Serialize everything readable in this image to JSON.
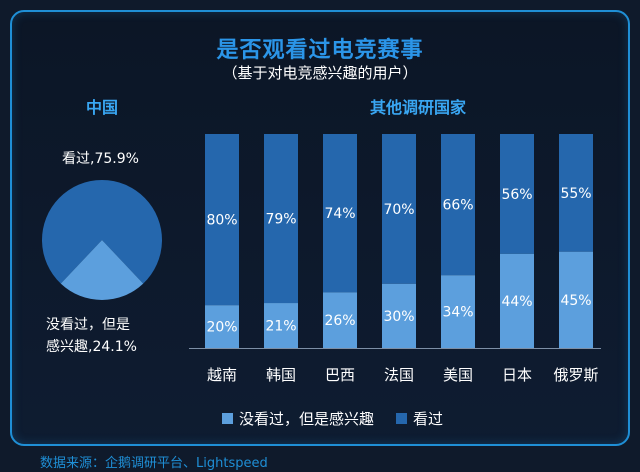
{
  "title": "是否观看过电竞赛事",
  "subtitle": "（基于对电竞感兴趣的用户）",
  "source": "数据来源：企鹅调研平台、Lightspeed",
  "colors": {
    "watched": "#2567ad",
    "not_watched": "#5c9fdd",
    "heading": "#39a6f2"
  },
  "chart_data": [
    {
      "type": "pie",
      "title": "中国",
      "slices": [
        {
          "label": "看过,75.9%",
          "value": 75.9,
          "color": "#2567ad"
        },
        {
          "label": "没看过，但是感兴趣,24.1%",
          "label_line1": "没看过，但是",
          "label_line2": "感兴趣,24.1%",
          "value": 24.1,
          "color": "#5c9fdd"
        }
      ]
    },
    {
      "type": "bar",
      "stacked": true,
      "title": "其他调研国家",
      "categories": [
        "越南",
        "韩国",
        "巴西",
        "法国",
        "美国",
        "日本",
        "俄罗斯"
      ],
      "ylim": [
        0,
        100
      ],
      "series": [
        {
          "name": "没看过，但是感兴趣",
          "values": [
            20,
            21,
            26,
            30,
            34,
            44,
            45
          ],
          "labels": [
            "20%",
            "21%",
            "26%",
            "30%",
            "34%",
            "44%",
            "45%"
          ],
          "color": "#5c9fdd"
        },
        {
          "name": "看过",
          "values": [
            80,
            79,
            74,
            70,
            66,
            56,
            55
          ],
          "labels": [
            "80%",
            "79%",
            "74%",
            "70%",
            "66%",
            "56%",
            "55%"
          ],
          "color": "#2567ad"
        }
      ],
      "legend_position": "bottom"
    }
  ]
}
